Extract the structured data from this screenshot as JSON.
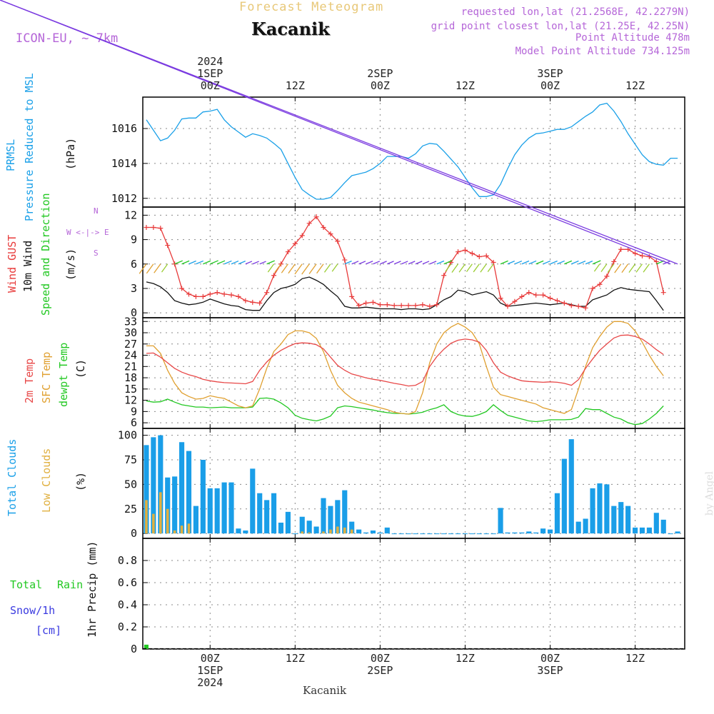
{
  "header": {
    "title": "Forecast Meteogram",
    "location": "Kacanik",
    "model": "ICON-EU, ~ 7km",
    "requested": "requested lon,lat (21.2568E, 42.2279N)",
    "gridpoint": "grid point closest lon,lat (21.25E, 42.25N)",
    "point_altitude": "Point Altitude 478m",
    "model_altitude": "Model Point Altitude 734.125m"
  },
  "footer_location": "Kacanik",
  "credit": "by Angel",
  "time_axis": {
    "top_labels": [
      {
        "line1": "2024",
        "line2": "1SEP",
        "line3": "00Z"
      },
      {
        "line1": "",
        "line2": "",
        "line3": "12Z"
      },
      {
        "line1": "",
        "line2": "2SEP",
        "line3": "00Z"
      },
      {
        "line1": "",
        "line2": "",
        "line3": "12Z"
      },
      {
        "line1": "",
        "line2": "3SEP",
        "line3": "00Z"
      },
      {
        "line1": "",
        "line2": "",
        "line3": "12Z"
      }
    ],
    "bottom_labels": [
      {
        "line1": "00Z",
        "line2": "1SEP",
        "line3": "2024"
      },
      {
        "line1": "12Z",
        "line2": "",
        "line3": ""
      },
      {
        "line1": "00Z",
        "line2": "2SEP",
        "line3": ""
      },
      {
        "line1": "12Z",
        "line2": "",
        "line3": ""
      },
      {
        "line1": "00Z",
        "line2": "3SEP",
        "line3": ""
      },
      {
        "line1": "12Z",
        "line2": "",
        "line3": ""
      }
    ]
  },
  "panel_labels": {
    "pressure": {
      "l1": "PRMSL",
      "l2": "Pressure Reduced to MSL",
      "unit": "(hPa)"
    },
    "wind": {
      "l1": "Wind GUST",
      "l2": "10m Wind",
      "l3": "Speed and Direction",
      "unit": "(m/s)",
      "compass": [
        "N",
        "W <-|-> E",
        "S"
      ]
    },
    "temp": {
      "l1": "2m Temp",
      "l2": "SFC Temp",
      "l3": "dewpt Temp",
      "unit": "(C)"
    },
    "clouds": {
      "l1": "Total Clouds",
      "l2": "Low Clouds",
      "unit": "(%)"
    },
    "precip": {
      "l1": "Total",
      "l1b": "Rain",
      "l2": "Snow/1h",
      "l3": "[cm]",
      "unit": "1hr Precip (mm)"
    }
  },
  "colors": {
    "pressure": "#1aa0e8",
    "gust": "#e83a3a",
    "wind": "#111111",
    "t2m": "#e84848",
    "sfc": "#e0a030",
    "dewpt": "#22c822",
    "total_cloud": "#1a9ee8",
    "low_cloud": "#e0b040",
    "rain": "#22c822",
    "snow": "#3a3ae0"
  },
  "chart_data": [
    {
      "type": "line",
      "name": "pressure",
      "x_hours_from_01SEP00Z": [
        -9,
        -8,
        -7,
        -6,
        -5,
        -4,
        -3,
        -2,
        -1,
        0,
        1,
        2,
        3,
        4,
        5,
        6,
        7,
        8,
        9,
        10,
        11,
        12,
        13,
        14,
        15,
        16,
        17,
        18,
        19,
        20,
        21,
        22,
        23,
        24,
        25,
        26,
        27,
        28,
        29,
        30,
        31,
        32,
        33,
        34,
        35,
        36,
        37,
        38,
        39,
        40,
        41,
        42,
        43,
        44,
        45,
        46,
        47,
        48,
        49,
        50,
        51,
        52,
        53,
        54,
        55,
        56,
        57,
        58,
        59,
        60,
        61,
        62,
        63,
        64,
        65,
        66
      ],
      "y": [
        1016.5,
        1015.9,
        1015.3,
        1015.45,
        1015.9,
        1016.55,
        1016.6,
        1016.6,
        1016.95,
        1017.0,
        1017.1,
        1016.5,
        1016.1,
        1015.8,
        1015.5,
        1015.7,
        1015.6,
        1015.45,
        1015.15,
        1014.8,
        1014.0,
        1013.2,
        1012.5,
        1012.2,
        1011.95,
        1011.95,
        1012.05,
        1012.45,
        1012.9,
        1013.3,
        1013.4,
        1013.5,
        1013.7,
        1014.0,
        1014.4,
        1014.4,
        1014.4,
        1014.3,
        1014.55,
        1015.0,
        1015.15,
        1015.1,
        1014.7,
        1014.25,
        1013.8,
        1013.2,
        1012.6,
        1012.1,
        1012.1,
        1012.2,
        1012.8,
        1013.7,
        1014.5,
        1015.05,
        1015.45,
        1015.7,
        1015.75,
        1015.85,
        1015.95,
        1015.95,
        1016.1,
        1016.4,
        1016.7,
        1016.95,
        1017.35,
        1017.45,
        1017.0,
        1016.4,
        1015.7,
        1015.1,
        1014.5,
        1014.1,
        1013.95,
        1013.9,
        1014.3,
        1014.3
      ],
      "ylim": [
        1011.5,
        1017.8
      ],
      "yticks": [
        1012,
        1014,
        1016
      ]
    },
    {
      "type": "line",
      "name": "wind",
      "x_hours_from_01SEP00Z": [
        -9,
        -8,
        -7,
        -6,
        -5,
        -4,
        -3,
        -2,
        -1,
        0,
        1,
        2,
        3,
        4,
        5,
        6,
        7,
        8,
        9,
        10,
        11,
        12,
        13,
        14,
        15,
        16,
        17,
        18,
        19,
        20,
        21,
        22,
        23,
        24,
        25,
        26,
        27,
        28,
        29,
        30,
        31,
        32,
        33,
        34,
        35,
        36,
        37,
        38,
        39,
        40,
        41,
        42,
        43,
        44,
        45,
        46,
        47,
        48,
        49,
        50,
        51,
        52,
        53,
        54,
        55,
        56,
        57,
        58,
        59,
        60,
        61,
        62,
        63,
        64,
        65,
        66
      ],
      "gust": [
        10.5,
        10.5,
        10.4,
        8.3,
        6.0,
        3.0,
        2.3,
        2.0,
        2.0,
        2.3,
        2.5,
        2.3,
        2.2,
        2.0,
        1.5,
        1.3,
        1.2,
        2.5,
        4.6,
        6.0,
        7.5,
        8.5,
        9.5,
        11.0,
        11.8,
        10.5,
        9.7,
        8.8,
        6.5,
        2.0,
        0.9,
        1.2,
        1.3,
        1.0,
        1.0,
        0.9,
        0.9,
        0.9,
        0.9,
        1.0,
        0.8,
        1.0,
        4.6,
        6.2,
        7.5,
        7.7,
        7.3,
        6.9,
        7.0,
        6.2,
        1.8,
        0.8,
        1.4,
        2.0,
        2.5,
        2.2,
        2.2,
        1.8,
        1.5,
        1.2,
        0.9,
        0.8,
        0.6,
        3.0,
        3.5,
        4.5,
        6.3,
        7.8,
        7.8,
        7.3,
        7.0,
        6.9,
        6.3,
        2.5
      ],
      "speed": [
        3.8,
        3.6,
        3.2,
        2.5,
        1.5,
        1.2,
        1.0,
        1.1,
        1.3,
        1.7,
        1.4,
        1.1,
        0.9,
        0.8,
        0.4,
        0.3,
        0.3,
        1.5,
        2.5,
        3.0,
        3.2,
        3.5,
        4.2,
        4.4,
        4.0,
        3.5,
        2.7,
        2.0,
        0.8,
        0.6,
        0.6,
        0.7,
        0.6,
        0.5,
        0.5,
        0.5,
        0.4,
        0.5,
        0.5,
        0.4,
        0.5,
        1.0,
        1.6,
        2.0,
        2.8,
        2.6,
        2.2,
        2.4,
        2.6,
        2.2,
        1.2,
        0.8,
        0.9,
        1.0,
        1.1,
        1.2,
        1.1,
        1.0,
        1.1,
        1.2,
        1.0,
        0.8,
        0.8,
        1.6,
        1.9,
        2.2,
        2.8,
        3.1,
        2.9,
        2.8,
        2.7,
        2.6,
        1.5,
        0.3
      ],
      "ylim": [
        -0.6,
        13
      ],
      "yticks": [
        0,
        3,
        6,
        9,
        12
      ]
    },
    {
      "type": "line",
      "name": "temperature",
      "x_hours_from_01SEP00Z": [
        -9,
        -8,
        -7,
        -6,
        -5,
        -4,
        -3,
        -2,
        -1,
        0,
        1,
        2,
        3,
        4,
        5,
        6,
        7,
        8,
        9,
        10,
        11,
        12,
        13,
        14,
        15,
        16,
        17,
        18,
        19,
        20,
        21,
        22,
        23,
        24,
        25,
        26,
        27,
        28,
        29,
        30,
        31,
        32,
        33,
        34,
        35,
        36,
        37,
        38,
        39,
        40,
        41,
        42,
        43,
        44,
        45,
        46,
        47,
        48,
        49,
        50,
        51,
        52,
        53,
        54,
        55,
        56,
        57,
        58,
        59,
        60,
        61,
        62,
        63,
        64,
        65,
        66
      ],
      "t2m": [
        24.5,
        24.6,
        23.5,
        22.0,
        20.5,
        19.5,
        18.8,
        18.3,
        17.6,
        17.2,
        16.9,
        16.7,
        16.6,
        16.5,
        16.4,
        17.0,
        20.0,
        22.2,
        24.0,
        25.3,
        26.3,
        27.1,
        27.3,
        27.2,
        26.8,
        25.7,
        23.5,
        21.3,
        20.0,
        19.0,
        18.5,
        18.0,
        17.6,
        17.3,
        16.9,
        16.5,
        16.2,
        15.8,
        16.0,
        17.0,
        21.0,
        23.6,
        25.6,
        27.2,
        28.0,
        28.3,
        28.1,
        27.5,
        25.3,
        22.0,
        19.5,
        18.5,
        17.8,
        17.2,
        17.0,
        16.9,
        16.8,
        16.9,
        16.8,
        16.5,
        16.0,
        17.5,
        20.5,
        23.0,
        25.3,
        27.0,
        28.6,
        29.3,
        29.4,
        29.0,
        28.3,
        27.0,
        25.5,
        24.2
      ],
      "sfc": [
        26.5,
        26.5,
        24.5,
        20.0,
        16.5,
        14.0,
        13.0,
        12.3,
        12.5,
        13.2,
        12.8,
        12.5,
        11.5,
        10.5,
        10.0,
        10.5,
        15.0,
        20.5,
        25.0,
        27.0,
        29.5,
        30.5,
        30.5,
        30.0,
        28.5,
        25.0,
        20.0,
        16.0,
        14.0,
        12.5,
        11.5,
        11.0,
        10.5,
        10.0,
        9.5,
        8.8,
        8.5,
        8.3,
        9.0,
        14.0,
        22.0,
        27.0,
        30.0,
        31.5,
        32.5,
        31.5,
        30.0,
        27.0,
        21.0,
        15.5,
        13.5,
        13.0,
        12.5,
        12.0,
        11.5,
        11.0,
        10.0,
        9.5,
        9.0,
        8.5,
        9.5,
        15.0,
        21.0,
        26.0,
        29.0,
        31.5,
        33.0,
        33.0,
        32.5,
        30.5,
        27.5,
        24.0,
        21.0,
        18.5
      ],
      "dewpt": [
        11.8,
        11.5,
        11.6,
        12.3,
        11.5,
        10.8,
        10.5,
        10.2,
        10.2,
        10.0,
        10.1,
        10.2,
        10.0,
        10.0,
        10.0,
        10.2,
        12.5,
        12.6,
        12.3,
        11.3,
        10.0,
        8.0,
        7.2,
        6.8,
        6.5,
        7.0,
        7.8,
        10.0,
        10.5,
        10.3,
        10.0,
        9.7,
        9.4,
        9.0,
        8.7,
        8.5,
        8.5,
        8.3,
        8.5,
        8.8,
        9.5,
        10.0,
        10.8,
        9.0,
        8.2,
        7.8,
        7.7,
        8.2,
        9.0,
        10.8,
        9.3,
        8.0,
        7.5,
        7.0,
        6.5,
        6.3,
        6.5,
        6.8,
        6.8,
        6.8,
        6.9,
        7.5,
        9.8,
        9.5,
        9.5,
        8.5,
        7.5,
        7.0,
        6.0,
        5.5,
        5.8,
        7.0,
        8.5,
        10.5
      ],
      "ylim": [
        4.5,
        34
      ],
      "yticks": [
        6,
        9,
        12,
        15,
        18,
        21,
        24,
        27,
        30,
        33
      ]
    },
    {
      "type": "bar",
      "name": "clouds",
      "x_hours_from_01SEP00Z": [
        -9,
        -8,
        -7,
        -6,
        -5,
        -4,
        -3,
        -2,
        -1,
        0,
        1,
        2,
        3,
        4,
        5,
        6,
        7,
        8,
        9,
        10,
        11,
        12,
        13,
        14,
        15,
        16,
        17,
        18,
        19,
        20,
        21,
        22,
        23,
        24,
        25,
        26,
        27,
        28,
        29,
        30,
        31,
        32,
        33,
        34,
        35,
        36,
        37,
        38,
        39,
        40,
        41,
        42,
        43,
        44,
        45,
        46,
        47,
        48,
        49,
        50,
        51,
        52,
        53,
        54,
        55,
        56,
        57,
        58,
        59,
        60,
        61,
        62,
        63,
        64,
        65,
        66
      ],
      "total": [
        90,
        98,
        100,
        57,
        58,
        93,
        84,
        28,
        75,
        46,
        46,
        52,
        52,
        5,
        3,
        66,
        41,
        34,
        41,
        11,
        22,
        0,
        17,
        13,
        7,
        36,
        28,
        34,
        44,
        12,
        4,
        1,
        3,
        1,
        6,
        0,
        0,
        0,
        0,
        0,
        0,
        0,
        0,
        0,
        0,
        0,
        0,
        0,
        0,
        0,
        26,
        1,
        1,
        1,
        2,
        1,
        5,
        4,
        41,
        76,
        96,
        12,
        15,
        46,
        51,
        50,
        28,
        32,
        28,
        6,
        6,
        6,
        21,
        14,
        0,
        2
      ],
      "low": [
        34,
        20,
        42,
        25,
        3,
        8,
        10,
        0,
        0,
        0,
        0,
        0,
        0,
        0,
        0,
        0,
        0,
        0,
        0,
        0,
        0,
        0,
        2,
        1,
        0,
        2,
        4,
        7,
        6,
        4,
        0,
        0,
        0,
        0,
        0,
        0,
        0,
        0,
        0,
        0,
        0,
        0,
        0,
        0,
        0,
        0,
        0,
        0,
        0,
        0,
        0,
        0,
        0,
        0,
        0,
        0,
        0,
        0,
        0,
        0,
        0,
        0,
        0,
        0,
        0,
        0,
        0,
        0,
        0,
        0,
        0,
        0,
        0,
        0,
        0,
        0
      ],
      "ylim": [
        -5,
        107
      ],
      "yticks": [
        0,
        25,
        50,
        75,
        100
      ]
    },
    {
      "type": "bar",
      "name": "precipitation",
      "x_hours_from_01SEP00Z": [
        -9
      ],
      "rain": [
        0.02
      ],
      "ylim": [
        0,
        1.0
      ],
      "yticks": [
        0,
        0.2,
        0.4,
        0.6,
        0.8
      ]
    }
  ]
}
